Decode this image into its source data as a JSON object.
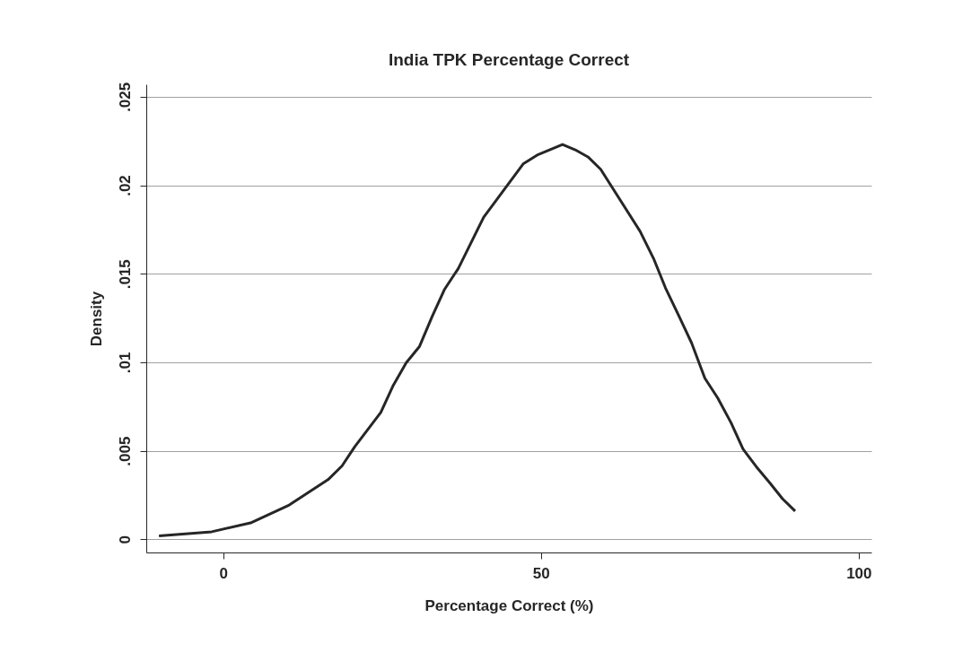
{
  "chart_data": {
    "type": "line",
    "title": "India TPK Percentage Correct",
    "xlabel": "Percentage Correct (%)",
    "ylabel": "Density",
    "x": [
      -10.1,
      -1.8,
      4.3,
      10.4,
      16.5,
      18.7,
      20.7,
      24.8,
      26.7,
      28.8,
      30.9,
      32.9,
      34.8,
      37.0,
      41.0,
      47.2,
      49.4,
      53.4,
      55.4,
      57.4,
      59.4,
      65.6,
      67.8,
      69.6,
      71.6,
      73.7,
      75.8,
      77.8,
      79.9,
      81.8,
      83.9,
      86.0,
      88.0,
      90.0
    ],
    "series": [
      {
        "color": "#262626",
        "values": [
          0.0002,
          0.00043,
          0.00093,
          0.00194,
          0.00337,
          0.00415,
          0.00523,
          0.00717,
          0.00865,
          0.00997,
          0.0109,
          0.0126,
          0.0141,
          0.0153,
          0.0182,
          0.0212,
          0.0217,
          0.0223,
          0.022,
          0.0216,
          0.0209,
          0.0174,
          0.0158,
          0.0142,
          0.0127,
          0.0111,
          0.0091,
          0.008,
          0.0066,
          0.0051,
          0.0041,
          0.0032,
          0.0023,
          0.0016
        ]
      }
    ],
    "xlim": [
      -12.1,
      102.0
    ],
    "ylim": [
      -0.00074,
      0.0257
    ],
    "xticks": [
      0,
      50,
      100
    ],
    "yticks": [
      0,
      {
        "value": 0.005,
        "label": ".005"
      },
      {
        "value": 0.01,
        "label": ".01"
      },
      {
        "value": 0.015,
        "label": ".015"
      },
      {
        "value": 0.02,
        "label": ".02"
      },
      {
        "value": 0.025,
        "label": ".025"
      }
    ],
    "grid": "y",
    "marker": "none",
    "line_style": "solid",
    "legend": false
  }
}
